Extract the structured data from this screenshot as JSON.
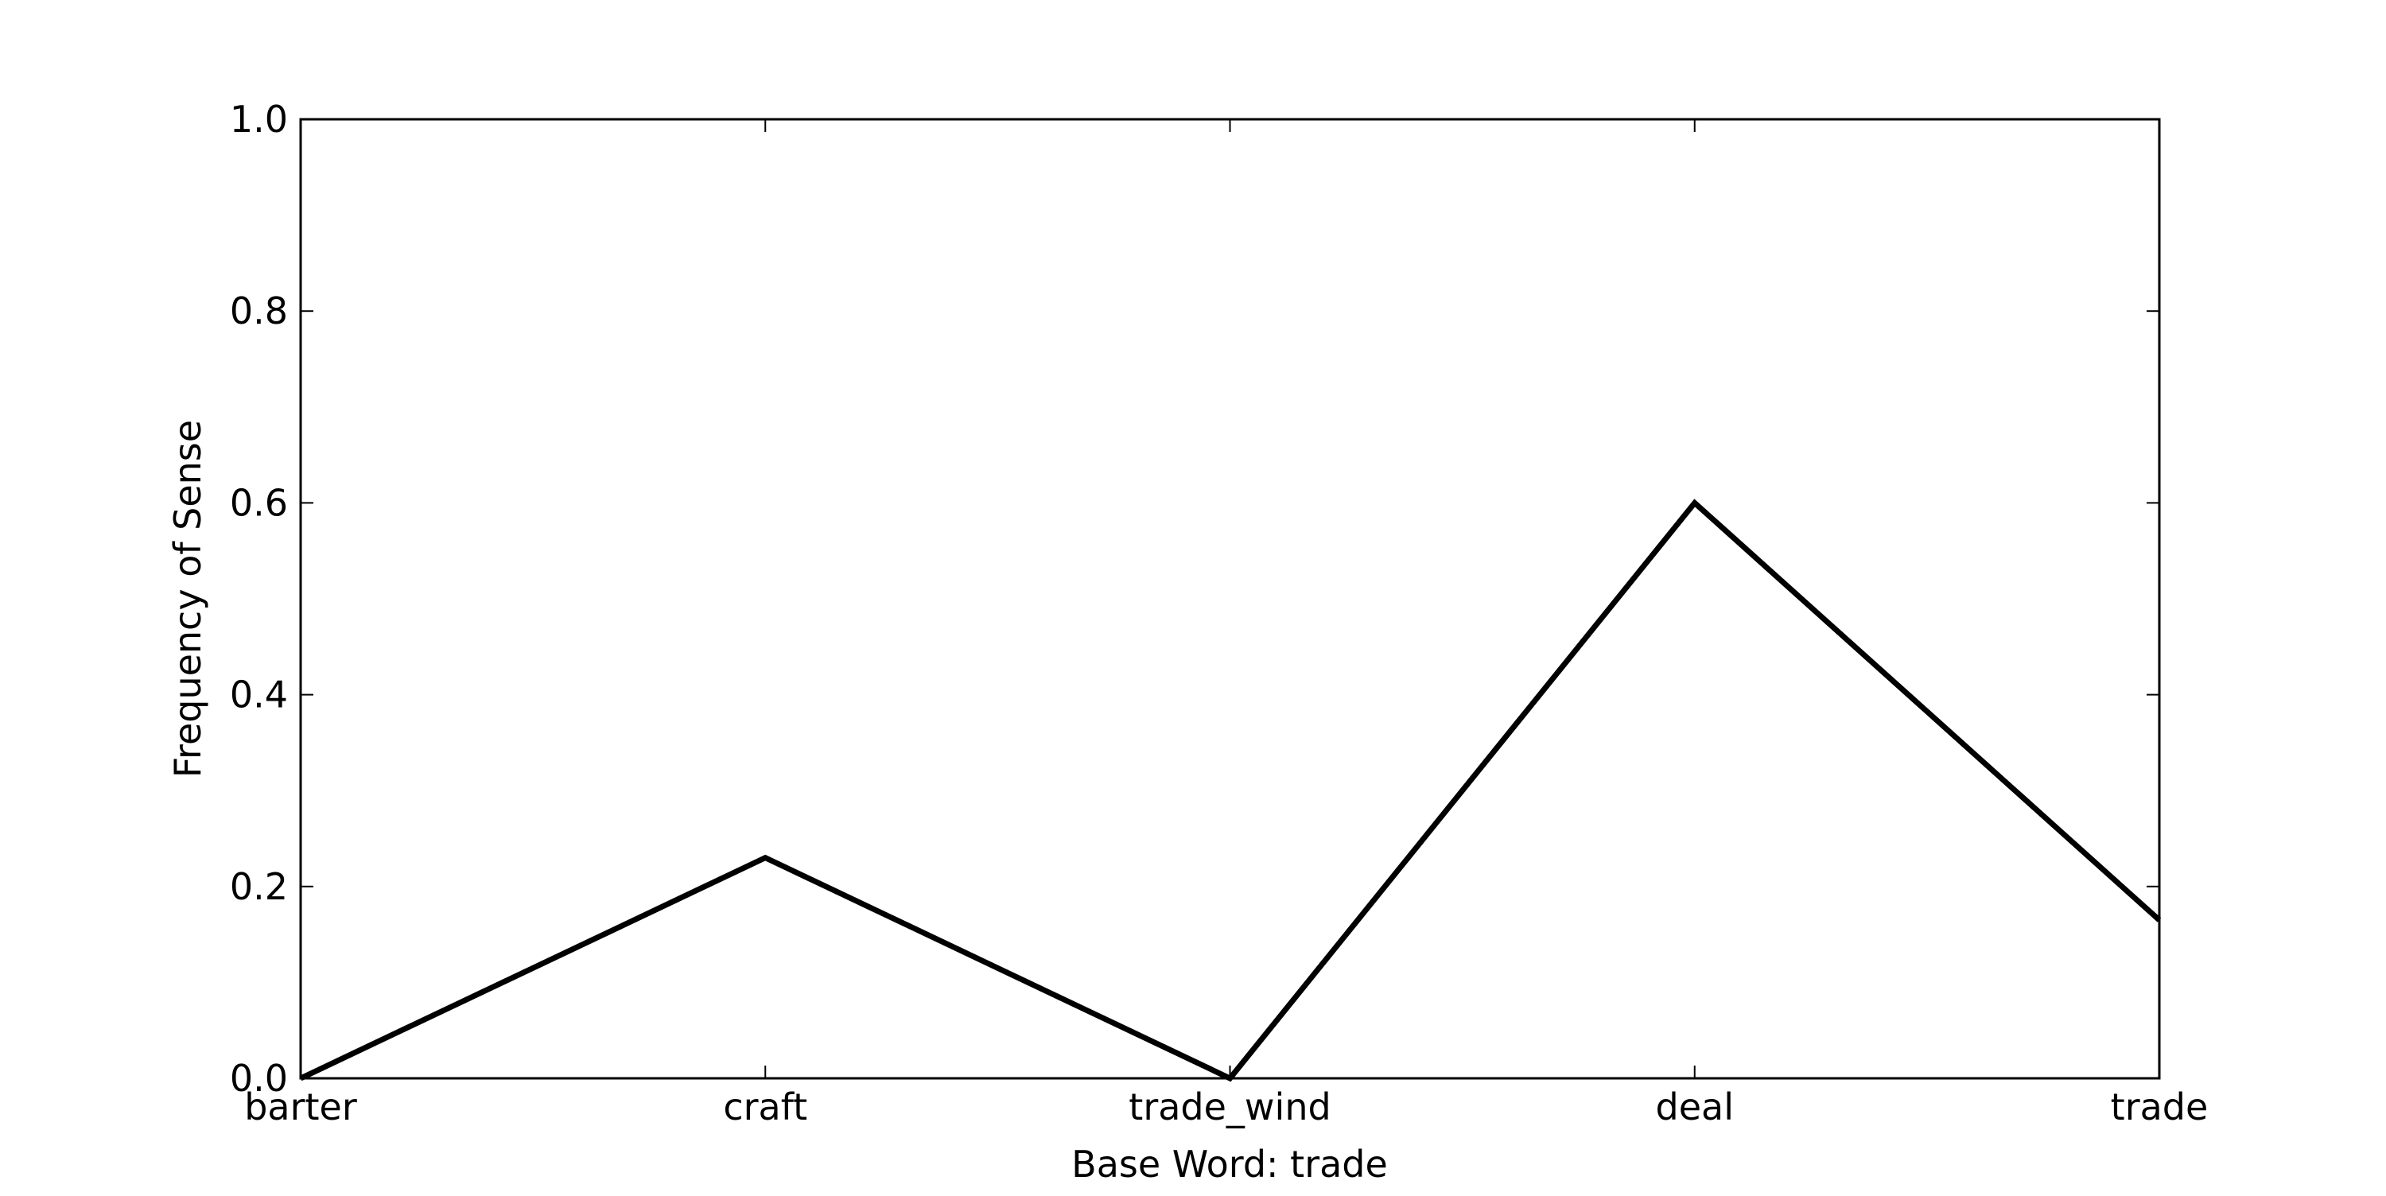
{
  "chart_data": {
    "type": "line",
    "categories": [
      "barter",
      "craft",
      "trade_wind",
      "deal",
      "trade"
    ],
    "series": [
      {
        "values": [
          0.0,
          0.23,
          0.0,
          0.6,
          0.165
        ]
      }
    ],
    "title": "",
    "xlabel": "Base Word: trade",
    "ylabel": "Frequency of Sense",
    "ylim": [
      0.0,
      1.0
    ],
    "yticks": [
      0.0,
      0.2,
      0.4,
      0.6,
      0.8,
      1.0
    ],
    "ytick_labels": [
      "0.0",
      "0.2",
      "0.4",
      "0.6",
      "0.8",
      "1.0"
    ],
    "grid": false,
    "legend": "none",
    "line_color": "#000000"
  }
}
